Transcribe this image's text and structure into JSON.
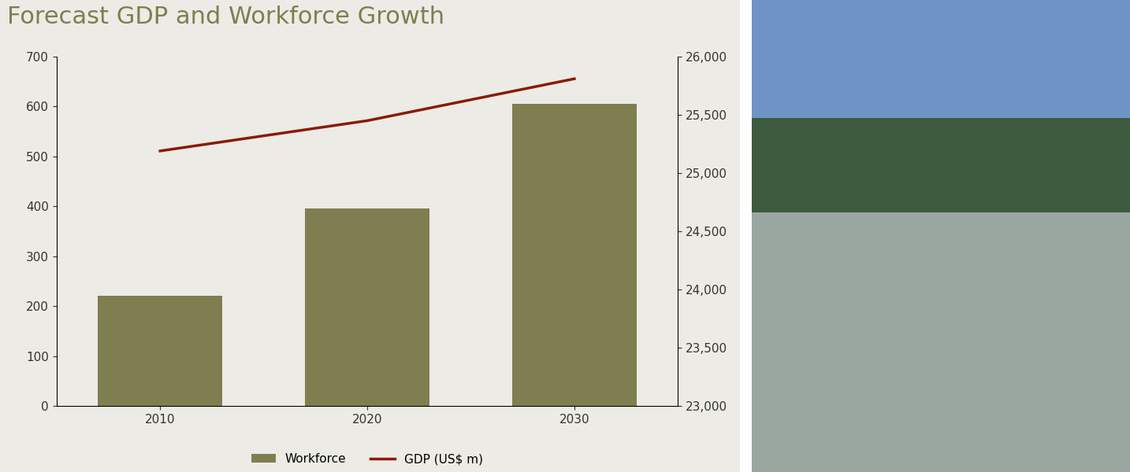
{
  "chart_data": {
    "type": "bar",
    "title": "Forecast GDP and Workforce Growth",
    "categories": [
      "2010",
      "2020",
      "2030"
    ],
    "series": [
      {
        "name": "Workforce",
        "type": "bar",
        "color": "#7f7e50",
        "values": [
          220,
          395,
          605
        ]
      },
      {
        "name": "GDP (US$ m)",
        "type": "line",
        "axis": "y2",
        "color": "#8b1a0a",
        "values": [
          25190,
          25450,
          25810
        ]
      }
    ],
    "ylim": [
      0,
      700
    ],
    "yticks": [
      0,
      100,
      200,
      300,
      400,
      500,
      600,
      700
    ],
    "y2lim": [
      23000,
      26000
    ],
    "y2ticks": [
      {
        "value": 23000,
        "label": "23,000"
      },
      {
        "value": 23500,
        "label": "23,500"
      },
      {
        "value": 24000,
        "label": "24,000"
      },
      {
        "value": 24500,
        "label": "24,500"
      },
      {
        "value": 25000,
        "label": "25,000"
      },
      {
        "value": 25500,
        "label": "25,500"
      },
      {
        "value": 26000,
        "label": "26,000"
      }
    ],
    "grid": false,
    "legend": "lower center"
  }
}
